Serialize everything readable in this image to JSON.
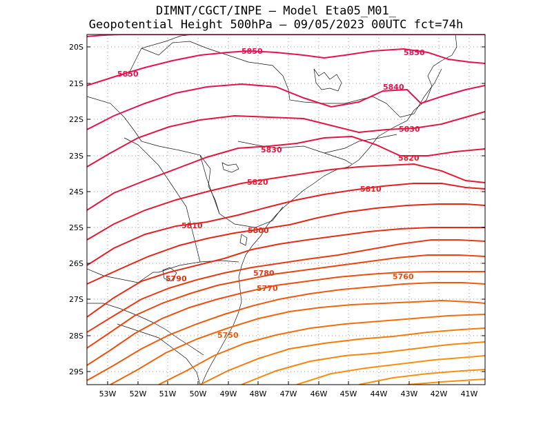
{
  "header": {
    "line1": "DIMNT/CGCT/INPE –  Model Eta05_M01_",
    "line2": "Geopotential Height 500hPa –  09/05/2023 00UTC fct=74h"
  },
  "axes": {
    "lat_labels": [
      "20S",
      "21S",
      "22S",
      "23S",
      "24S",
      "25S",
      "26S",
      "27S",
      "28S",
      "29S"
    ],
    "lon_labels": [
      "53W",
      "52W",
      "51W",
      "50W",
      "49W",
      "48W",
      "47W",
      "46W",
      "45W",
      "44W",
      "43W",
      "42W",
      "41W"
    ]
  },
  "contours": {
    "labels": [
      "5850",
      "5850",
      "5850",
      "5840",
      "5830",
      "5830",
      "5820",
      "5820",
      "5810",
      "5810",
      "5800",
      "5790",
      "5780",
      "5770",
      "5760",
      "5750"
    ],
    "colors": {
      "c5850": "#e8114e",
      "c5840": "#e8114e",
      "c5830": "#e5143f",
      "c5820": "#e51a30",
      "c5810": "#e41e22",
      "c5800": "#e52618",
      "c5790": "#e62e14",
      "c5780": "#e83a12",
      "c5770": "#ea4410",
      "c5760": "#ed4e0d",
      "c5750": "#ef590b",
      "c5740": "#f1640a",
      "c5730": "#f36e0a",
      "c5720": "#f57a0a",
      "c5710": "#f7850a",
      "c5700": "#f98f0c"
    }
  }
}
